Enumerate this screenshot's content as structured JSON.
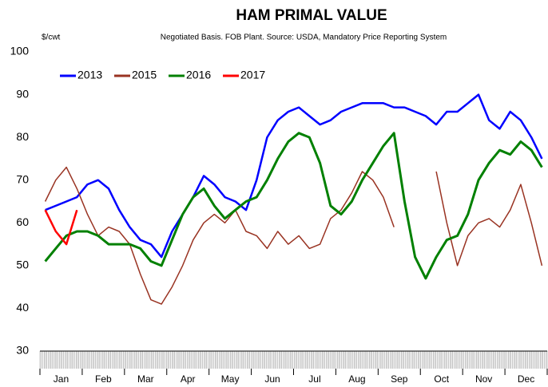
{
  "chart_data": {
    "type": "line",
    "title": "HAM PRIMAL VALUE",
    "subtitle": "Negotiated Basis. FOB Plant.  Source: USDA, Mandatory Price Reporting System",
    "y_label": "$/cwt",
    "categories": [
      null,
      "Jan",
      null,
      null,
      null,
      "Feb",
      null,
      null,
      null,
      "Mar",
      null,
      null,
      null,
      "Apr",
      null,
      null,
      null,
      "May",
      null,
      null,
      null,
      "Jun",
      null,
      null,
      null,
      "Jul",
      null,
      null,
      null,
      "Aug",
      null,
      null,
      null,
      "Sep",
      null,
      null,
      null,
      "Oct",
      null,
      null,
      null,
      "Nov",
      null,
      null,
      null,
      "Dec",
      null,
      null
    ],
    "series": [
      {
        "name": "2013",
        "color": "#0000ff",
        "values": [
          63,
          64,
          65,
          66,
          69,
          70,
          68,
          63,
          59,
          56,
          55,
          52,
          58,
          62,
          66,
          71,
          69,
          66,
          65,
          63,
          70,
          80,
          84,
          86,
          87,
          85,
          83,
          84,
          86,
          87,
          88,
          88,
          88,
          87,
          87,
          86,
          85,
          83,
          86,
          86,
          88,
          90,
          84,
          82,
          86,
          84,
          80,
          75
        ]
      },
      {
        "name": "2015",
        "color": "#993322",
        "values": [
          65,
          70,
          73,
          68,
          62,
          57,
          59,
          58,
          55,
          48,
          42,
          41,
          45,
          50,
          56,
          60,
          62,
          60,
          63,
          58,
          57,
          54,
          58,
          55,
          57,
          54,
          55,
          61,
          63,
          67,
          72,
          70,
          66,
          59,
          null,
          null,
          null,
          72,
          60,
          50,
          57,
          60,
          61,
          59,
          63,
          69,
          60,
          50
        ]
      },
      {
        "name": "2016",
        "color": "#008000",
        "values": [
          51,
          54,
          57,
          58,
          58,
          57,
          55,
          55,
          55,
          54,
          51,
          50,
          56,
          62,
          66,
          68,
          64,
          61,
          63,
          65,
          66,
          70,
          75,
          79,
          81,
          80,
          74,
          64,
          62,
          65,
          70,
          74,
          78,
          81,
          65,
          52,
          47,
          52,
          56,
          57,
          62,
          70,
          74,
          77,
          76,
          79,
          77,
          73
        ]
      },
      {
        "name": "2017",
        "color": "#ff0000",
        "values": [
          63,
          58,
          55,
          63,
          null,
          null,
          null,
          null,
          null,
          null,
          null,
          null,
          null,
          null,
          null,
          null,
          null,
          null,
          null,
          null,
          null,
          null,
          null,
          null,
          null,
          null,
          null,
          null,
          null,
          null,
          null,
          null,
          null,
          null,
          null,
          null,
          null,
          null,
          null,
          null,
          null,
          null,
          null,
          null,
          null,
          null,
          null,
          null
        ]
      }
    ],
    "ylim": [
      30,
      100
    ],
    "yticks": [
      30,
      40,
      50,
      60,
      70,
      80,
      90,
      100
    ],
    "grid": false,
    "legend": "top-left"
  }
}
